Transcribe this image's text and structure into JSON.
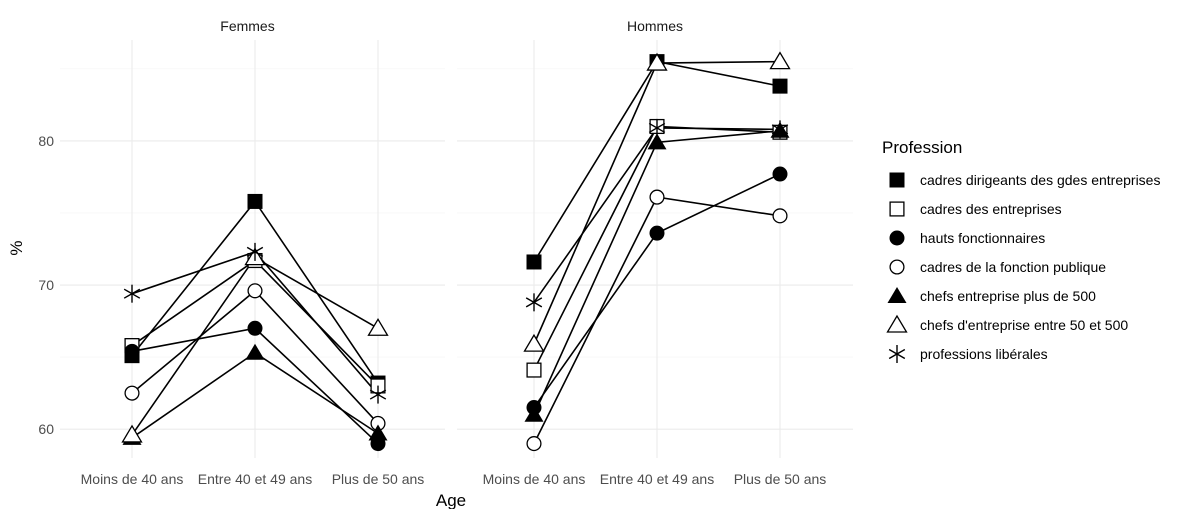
{
  "chart_data": {
    "type": "line",
    "xlabel": "Age",
    "ylabel": "%",
    "ylim": [
      58,
      87
    ],
    "yticks": [
      60,
      70,
      80
    ],
    "categories": [
      "Moins de 40 ans",
      "Entre 40 et 49 ans",
      "Plus de 50 ans"
    ],
    "panels": [
      {
        "name": "Femmes",
        "series": [
          {
            "name": "cadres dirigeants des gdes entreprises",
            "values": [
              65.1,
              75.8,
              63.2
            ]
          },
          {
            "name": "cadres des entreprises",
            "values": [
              65.8,
              71.7,
              63.0
            ]
          },
          {
            "name": "hauts fonctionnaires",
            "values": [
              65.4,
              67.0,
              59.0
            ]
          },
          {
            "name": "cadres de la fonction publique",
            "values": [
              62.5,
              69.6,
              60.4
            ]
          },
          {
            "name": "chefs entreprise plus de 500",
            "values": [
              59.4,
              65.3,
              59.7
            ]
          },
          {
            "name": "chefs d'entreprise entre 50 et 500",
            "values": [
              59.6,
              71.9,
              67.0
            ]
          },
          {
            "name": "professions libérales",
            "values": [
              69.4,
              72.3,
              62.4
            ]
          }
        ]
      },
      {
        "name": "Hommes",
        "series": [
          {
            "name": "cadres dirigeants des gdes entreprises",
            "values": [
              71.6,
              85.5,
              83.8
            ]
          },
          {
            "name": "cadres des entreprises",
            "values": [
              64.1,
              81.0,
              80.6
            ]
          },
          {
            "name": "hauts fonctionnaires",
            "values": [
              61.5,
              73.6,
              77.7
            ]
          },
          {
            "name": "cadres de la fonction publique",
            "values": [
              59.0,
              76.1,
              74.8
            ]
          },
          {
            "name": "chefs entreprise plus de 500",
            "values": [
              61.0,
              79.9,
              80.7
            ]
          },
          {
            "name": "chefs d'entreprise entre 50 et 500",
            "values": [
              65.9,
              85.4,
              85.5
            ]
          },
          {
            "name": "professions libérales",
            "values": [
              68.8,
              80.9,
              80.8
            ]
          }
        ]
      }
    ],
    "legend": {
      "title": "Profession",
      "position": "right",
      "entries": [
        {
          "label": "cadres dirigeants des gdes entreprises",
          "shape": "square-filled"
        },
        {
          "label": "cadres des entreprises",
          "shape": "square-open"
        },
        {
          "label": "hauts fonctionnaires",
          "shape": "circle-filled"
        },
        {
          "label": "cadres de la fonction publique",
          "shape": "circle-open"
        },
        {
          "label": "chefs entreprise plus de 500",
          "shape": "triangle-filled"
        },
        {
          "label": "chefs d'entreprise entre 50 et 500",
          "shape": "triangle-open"
        },
        {
          "label": "professions libérales",
          "shape": "asterisk"
        }
      ]
    },
    "grid": true,
    "colors": {
      "ink": "#000000",
      "grid": "#ebebeb",
      "tick_text": "#4d4d4d"
    }
  }
}
